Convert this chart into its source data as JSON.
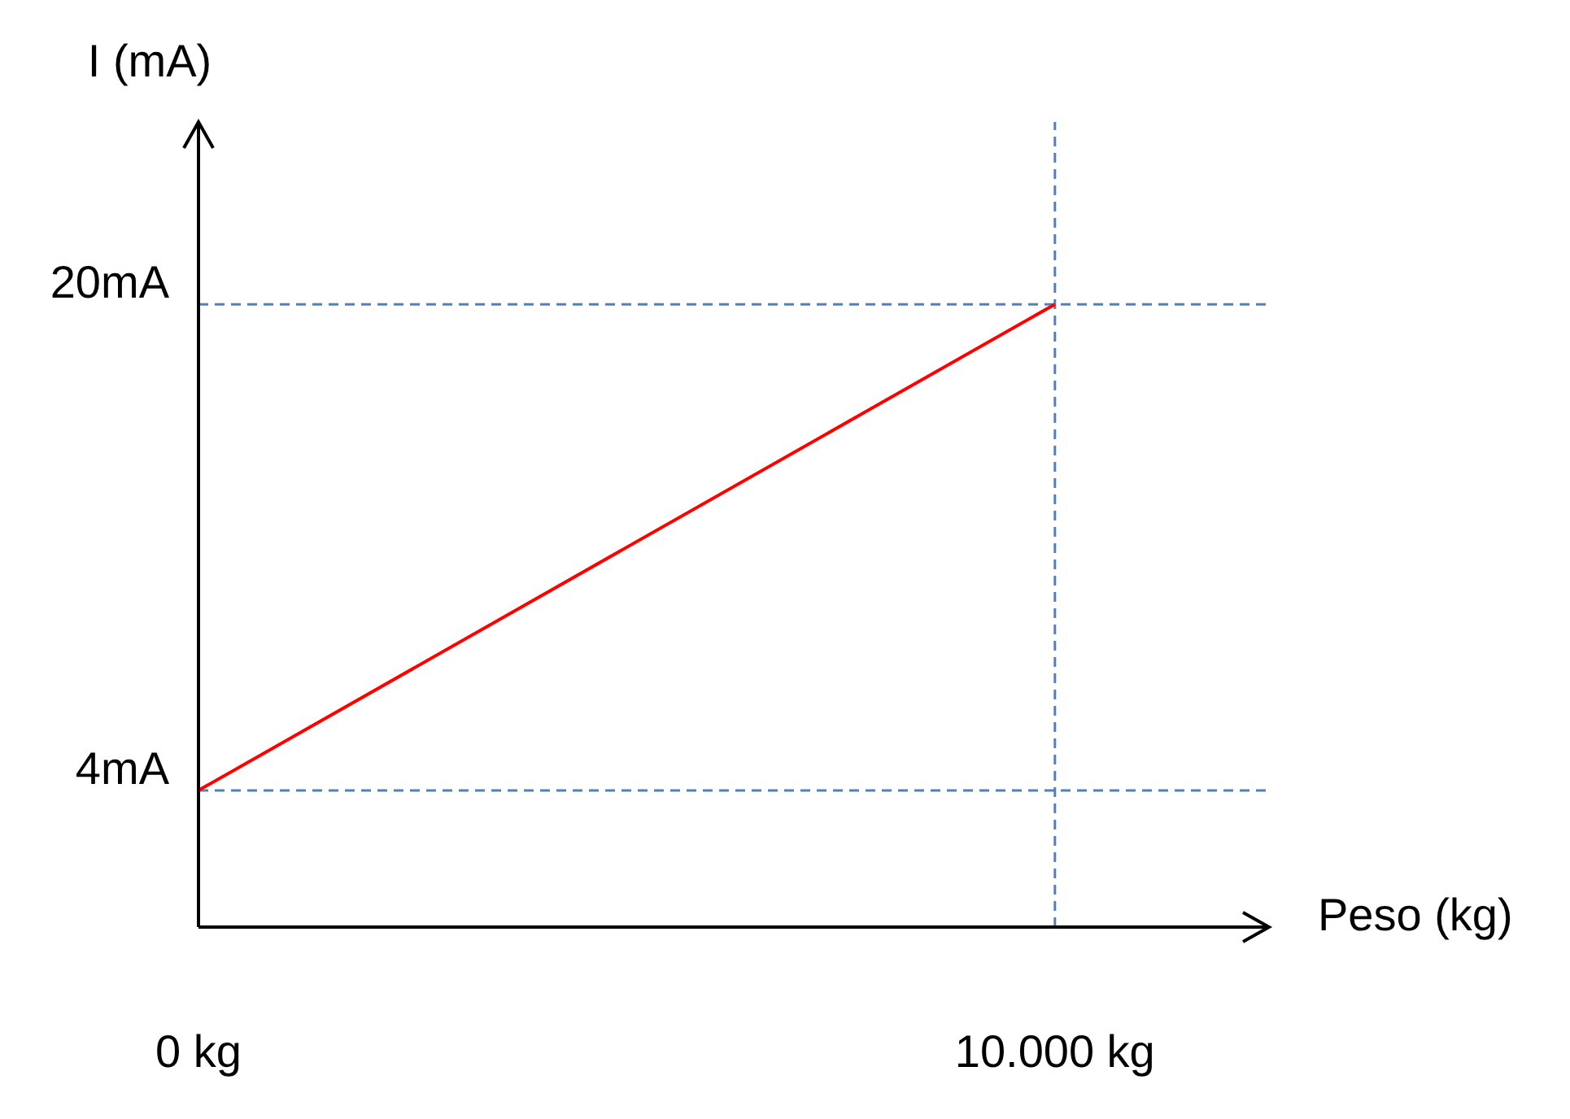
{
  "chart_data": {
    "type": "line",
    "xlabel": "Peso (kg)",
    "ylabel": "I (mA)",
    "x": [
      0,
      10000
    ],
    "series": [
      {
        "color": "#ff0000",
        "values": [
          4,
          20
        ]
      }
    ],
    "xlim": [
      0,
      12500
    ],
    "ylim": [
      -0.5,
      26
    ],
    "xticks": [
      {
        "value": 0,
        "label": "0 kg"
      },
      {
        "value": 10000,
        "label": "10.000 kg"
      }
    ],
    "yticks": [
      {
        "value": 4,
        "label": "4mA"
      },
      {
        "value": 20,
        "label": "20mA"
      }
    ],
    "ref_lines": [
      {
        "axis": "y",
        "value": 20,
        "color": "#4f81bd",
        "line_style": "dashed"
      },
      {
        "axis": "y",
        "value": 4,
        "color": "#4f81bd",
        "line_style": "dashed"
      },
      {
        "axis": "x",
        "value": 10000,
        "color": "#4f81bd",
        "line_style": "dashed"
      }
    ],
    "grid": false,
    "marker": "none",
    "line_style": "solid"
  }
}
